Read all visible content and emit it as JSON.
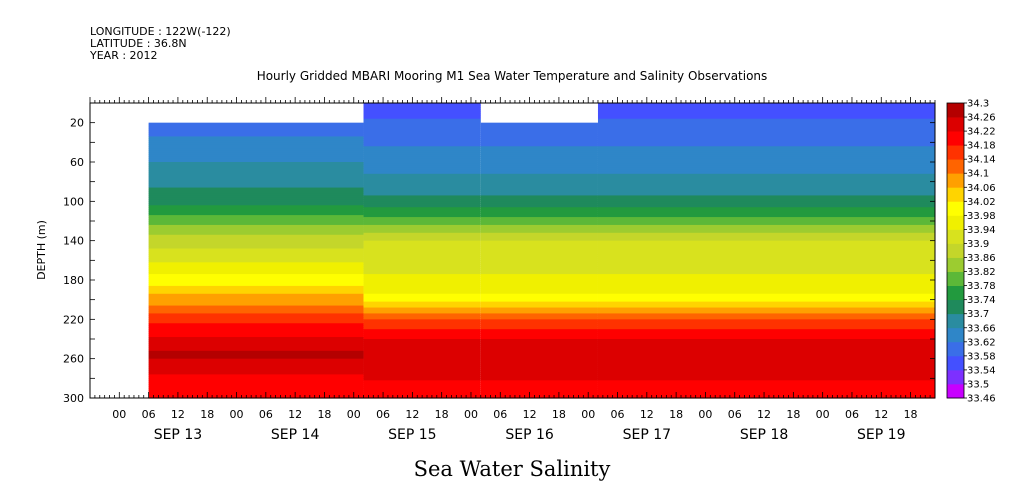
{
  "header": {
    "longitude": "LONGITUDE : 122W(-122)",
    "latitude": "LATITUDE : 36.8N",
    "year": "YEAR : 2012"
  },
  "chart_data": {
    "type": "heatmap",
    "title": "Hourly Gridded MBARI Mooring M1 Sea Water Temperature and Salinity Observations",
    "xlabel": "Sea Water Salinity",
    "ylabel": "DEPTH (m)",
    "x_start": "2012-09-12T18:00",
    "x_end": "2012-09-19T23:00",
    "ylim": [
      300,
      0
    ],
    "y_ticks": [
      20,
      60,
      100,
      140,
      180,
      220,
      260,
      300
    ],
    "x_hour_ticks": [
      {
        "t": "2012-09-13T00:00",
        "label": "00"
      },
      {
        "t": "2012-09-13T06:00",
        "label": "06"
      },
      {
        "t": "2012-09-13T12:00",
        "label": "12"
      },
      {
        "t": "2012-09-13T18:00",
        "label": "18"
      },
      {
        "t": "2012-09-14T00:00",
        "label": "00"
      },
      {
        "t": "2012-09-14T06:00",
        "label": "06"
      },
      {
        "t": "2012-09-14T12:00",
        "label": "12"
      },
      {
        "t": "2012-09-14T18:00",
        "label": "18"
      },
      {
        "t": "2012-09-15T00:00",
        "label": "00"
      },
      {
        "t": "2012-09-15T06:00",
        "label": "06"
      },
      {
        "t": "2012-09-15T12:00",
        "label": "12"
      },
      {
        "t": "2012-09-15T18:00",
        "label": "18"
      },
      {
        "t": "2012-09-16T00:00",
        "label": "00"
      },
      {
        "t": "2012-09-16T06:00",
        "label": "06"
      },
      {
        "t": "2012-09-16T12:00",
        "label": "12"
      },
      {
        "t": "2012-09-16T18:00",
        "label": "18"
      },
      {
        "t": "2012-09-17T00:00",
        "label": "00"
      },
      {
        "t": "2012-09-17T06:00",
        "label": "06"
      },
      {
        "t": "2012-09-17T12:00",
        "label": "12"
      },
      {
        "t": "2012-09-17T18:00",
        "label": "18"
      },
      {
        "t": "2012-09-18T00:00",
        "label": "00"
      },
      {
        "t": "2012-09-18T06:00",
        "label": "06"
      },
      {
        "t": "2012-09-18T12:00",
        "label": "12"
      },
      {
        "t": "2012-09-18T18:00",
        "label": "18"
      },
      {
        "t": "2012-09-19T00:00",
        "label": "00"
      },
      {
        "t": "2012-09-19T06:00",
        "label": "06"
      },
      {
        "t": "2012-09-19T12:00",
        "label": "12"
      },
      {
        "t": "2012-09-19T18:00",
        "label": "18"
      }
    ],
    "x_day_labels": [
      {
        "t": "2012-09-13T12:00",
        "label": "SEP 13"
      },
      {
        "t": "2012-09-14T12:00",
        "label": "SEP 14"
      },
      {
        "t": "2012-09-15T12:00",
        "label": "SEP 15"
      },
      {
        "t": "2012-09-16T12:00",
        "label": "SEP 16"
      },
      {
        "t": "2012-09-17T12:00",
        "label": "SEP 17"
      },
      {
        "t": "2012-09-18T12:00",
        "label": "SEP 18"
      },
      {
        "t": "2012-09-19T12:00",
        "label": "SEP 19"
      }
    ],
    "data_start": "2012-09-13T06:00",
    "surface_segments": [
      {
        "start": "2012-09-15T02:00",
        "end": "2012-09-16T02:00",
        "top_depth": 0
      },
      {
        "start": "2012-09-16T02:00",
        "end": "2012-09-17T02:00",
        "top_depth": 20
      },
      {
        "start": "2012-09-17T02:00",
        "end": "2012-09-19T23:00",
        "top_depth": 0
      }
    ],
    "first_segment_top_depth": 20,
    "profile_before": [
      {
        "depth": 0,
        "salinity": 33.57
      },
      {
        "depth": 20,
        "salinity": 33.6
      },
      {
        "depth": 60,
        "salinity": 33.66
      },
      {
        "depth": 100,
        "salinity": 33.72
      },
      {
        "depth": 140,
        "salinity": 33.88
      },
      {
        "depth": 170,
        "salinity": 33.96
      },
      {
        "depth": 190,
        "salinity": 34.04
      },
      {
        "depth": 210,
        "salinity": 34.12
      },
      {
        "depth": 230,
        "salinity": 34.2
      },
      {
        "depth": 255,
        "salinity": 34.27
      },
      {
        "depth": 275,
        "salinity": 34.22
      },
      {
        "depth": 300,
        "salinity": 34.2
      }
    ],
    "profile_after": [
      {
        "depth": 0,
        "salinity": 33.54
      },
      {
        "depth": 20,
        "salinity": 33.59
      },
      {
        "depth": 60,
        "salinity": 33.64
      },
      {
        "depth": 100,
        "salinity": 33.71
      },
      {
        "depth": 120,
        "salinity": 33.8
      },
      {
        "depth": 140,
        "salinity": 33.9
      },
      {
        "depth": 190,
        "salinity": 33.96
      },
      {
        "depth": 205,
        "salinity": 34.04
      },
      {
        "depth": 220,
        "salinity": 34.14
      },
      {
        "depth": 240,
        "salinity": 34.22
      },
      {
        "depth": 255,
        "salinity": 34.25
      },
      {
        "depth": 300,
        "salinity": 34.2
      }
    ],
    "regime_change": "2012-09-15T02:00",
    "colorbar": {
      "levels": [
        33.46,
        33.5,
        33.54,
        33.58,
        33.62,
        33.66,
        33.7,
        33.74,
        33.78,
        33.82,
        33.86,
        33.9,
        33.94,
        33.98,
        34.02,
        34.06,
        34.1,
        34.14,
        34.18,
        34.22,
        34.26,
        34.3
      ],
      "labels": [
        "33.46",
        "33.5",
        "33.54",
        "33.58",
        "33.62",
        "33.66",
        "33.7",
        "33.74",
        "33.78",
        "33.82",
        "33.86",
        "33.9",
        "33.94",
        "33.98",
        "34.02",
        "34.06",
        "34.1",
        "34.14",
        "34.18",
        "34.22",
        "34.26",
        "34.3"
      ],
      "colors": [
        "#c800ff",
        "#7d30ff",
        "#4450ff",
        "#3a6ee8",
        "#2f86c8",
        "#2a8ca0",
        "#1f8a5c",
        "#229a3e",
        "#5cb838",
        "#9ccc30",
        "#c4d62a",
        "#d8e21e",
        "#f0f000",
        "#ffff00",
        "#ffd400",
        "#ffa000",
        "#ff6400",
        "#ff3200",
        "#ff0000",
        "#dc0000",
        "#b40000"
      ]
    }
  }
}
